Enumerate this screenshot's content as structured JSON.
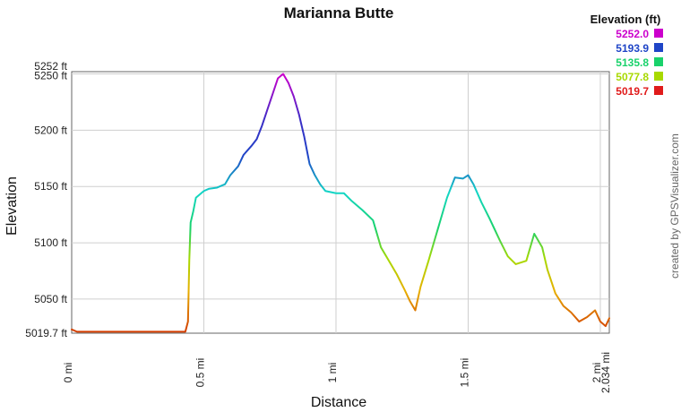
{
  "chart_data": {
    "type": "line",
    "title": "Marianna Butte",
    "xlabel": "Distance",
    "ylabel": "Elevation",
    "credit": "created by GPSVisualizer.com",
    "x_unit": "mi",
    "y_unit": "ft",
    "xlim": [
      0,
      2.034
    ],
    "ylim": [
      5019.7,
      5252.0
    ],
    "x_ticks": [
      "0 mi",
      "0.5 mi",
      "1 mi",
      "1.5 mi",
      "2 mi",
      "2.034 mi"
    ],
    "x_tick_values": [
      0,
      0.5,
      1,
      1.5,
      2,
      2.034
    ],
    "y_ticks": [
      "5019.7 ft",
      "5050 ft",
      "5100 ft",
      "5150 ft",
      "5200 ft",
      "5250 ft",
      "5252 ft"
    ],
    "y_tick_values": [
      5019.7,
      5050,
      5100,
      5150,
      5200,
      5250,
      5252
    ],
    "legend": {
      "title": "Elevation (ft)",
      "items": [
        {
          "label": "5252.0",
          "color": "#cc00cc"
        },
        {
          "label": "5193.9",
          "color": "#1f45c7"
        },
        {
          "label": "5135.8",
          "color": "#19d26b"
        },
        {
          "label": "5077.8",
          "color": "#a8d900"
        },
        {
          "label": "5019.7",
          "color": "#e01b1b"
        }
      ]
    },
    "series": [
      {
        "x": [
          0.0,
          0.02,
          0.08,
          0.2,
          0.35,
          0.43,
          0.44,
          0.445,
          0.45,
          0.46,
          0.47,
          0.5,
          0.52,
          0.55,
          0.58,
          0.6,
          0.63,
          0.65,
          0.68,
          0.7,
          0.72,
          0.74,
          0.76,
          0.78,
          0.8,
          0.82,
          0.84,
          0.86,
          0.88,
          0.9,
          0.92,
          0.94,
          0.96,
          1.0,
          1.03,
          1.06,
          1.1,
          1.14,
          1.17,
          1.2,
          1.23,
          1.26,
          1.28,
          1.3,
          1.32,
          1.35,
          1.38,
          1.42,
          1.45,
          1.48,
          1.5,
          1.52,
          1.55,
          1.58,
          1.62,
          1.65,
          1.68,
          1.72,
          1.75,
          1.78,
          1.8,
          1.83,
          1.86,
          1.89,
          1.92,
          1.95,
          1.98,
          2.0,
          2.02,
          2.034
        ],
        "y": [
          5023,
          5021,
          5021,
          5021,
          5021,
          5021,
          5030,
          5085,
          5118,
          5128,
          5140,
          5146,
          5148,
          5149,
          5152,
          5160,
          5168,
          5178,
          5186,
          5192,
          5204,
          5218,
          5232,
          5246,
          5250,
          5242,
          5230,
          5214,
          5194,
          5170,
          5160,
          5152,
          5146,
          5144,
          5144,
          5137,
          5129,
          5120,
          5096,
          5084,
          5072,
          5058,
          5048,
          5040,
          5061,
          5084,
          5108,
          5140,
          5158,
          5157,
          5160,
          5152,
          5136,
          5122,
          5102,
          5088,
          5081,
          5084,
          5108,
          5096,
          5076,
          5055,
          5044,
          5038,
          5030,
          5034,
          5040,
          5030,
          5026,
          5033
        ]
      }
    ],
    "grid": true
  }
}
